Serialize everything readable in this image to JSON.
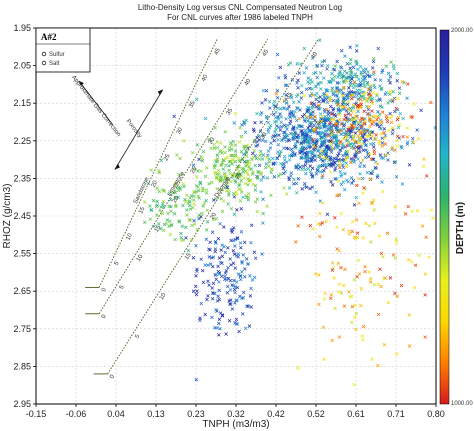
{
  "chart_data": {
    "type": "scatter",
    "title_lines": [
      "Litho-Density Log versus CNL Compensated Neutron Log",
      "For CNL curves after 1986 labeled TNPH"
    ],
    "xlabel": "TNPH (m3/m3)",
    "ylabel": "RHOZ (g/cm3)",
    "xlim": [
      -0.15,
      0.8
    ],
    "ylim": [
      1.95,
      2.95
    ],
    "y_reversed": true,
    "grid": true,
    "x_ticks": [
      "-0.15",
      "-0.06",
      "0.04",
      "0.13",
      "0.23",
      "0.32",
      "0.42",
      "0.52",
      "0.61",
      "0.71",
      "0.80"
    ],
    "x_tick_values": [
      -0.15,
      -0.055,
      0.04,
      0.135,
      0.23,
      0.325,
      0.42,
      0.515,
      0.61,
      0.705,
      0.8
    ],
    "y_ticks": [
      "1.95",
      "2.05",
      "2.15",
      "2.25",
      "2.35",
      "2.45",
      "2.55",
      "2.65",
      "2.75",
      "2.85",
      "2.95"
    ],
    "y_tick_values": [
      1.95,
      2.05,
      2.15,
      2.25,
      2.35,
      2.45,
      2.55,
      2.65,
      2.75,
      2.85,
      2.95
    ],
    "panel_label": "A#2",
    "legend": {
      "placement": "top-left",
      "items": [
        {
          "label": "Sulfur",
          "marker": "small-circle"
        },
        {
          "label": "Salt",
          "marker": "small-circle"
        }
      ]
    },
    "colorbar": {
      "label": "DEPTH (m)",
      "min_label": "1000.00",
      "max_label": "2000.00",
      "min": 1000,
      "max": 2000,
      "colors": [
        "#d7191c",
        "#ff7f00",
        "#ffd700",
        "#e6f01e",
        "#7fd03c",
        "#2db36b",
        "#22b5c9",
        "#1e7fd6",
        "#1e3cb4",
        "#2a1f9b"
      ]
    },
    "lithology_lines": [
      {
        "name": "Sandstone",
        "start": [
          0.0,
          2.64
        ],
        "end": [
          0.28,
          1.98
        ],
        "ticks": [
          "0",
          "5",
          "10",
          "15",
          "20",
          "25",
          "30",
          "35",
          "40",
          "45"
        ],
        "label_at": 0.42
      },
      {
        "name": "Limestone",
        "start": [
          0.0,
          2.71
        ],
        "end": [
          0.4,
          1.98
        ],
        "ticks": [
          "0",
          "5",
          "10",
          "15",
          "20",
          "25",
          "30",
          "35",
          "40",
          "45"
        ],
        "label_at": 0.5
      },
      {
        "name": "Dolomite",
        "start": [
          0.02,
          2.87
        ],
        "end": [
          0.52,
          1.98
        ],
        "ticks": [
          "0",
          "5",
          "10",
          "15",
          "20",
          "25",
          "30",
          "35",
          "40"
        ],
        "label_at": 0.58
      }
    ],
    "annotations": [
      {
        "text": "Approximate Gas Correction",
        "x": -0.01,
        "y": 2.16
      },
      {
        "text": "Porosity",
        "x": 0.08,
        "y": 2.22
      }
    ],
    "clusters": [
      {
        "name": "main",
        "cx": 0.52,
        "cy": 2.24,
        "sx": 0.085,
        "sy": 0.065,
        "n": 900,
        "depth_range": [
          1600,
          2000
        ],
        "marker": "x"
      },
      {
        "name": "upper-band",
        "cx": 0.6,
        "cy": 2.1,
        "sx": 0.06,
        "sy": 0.04,
        "n": 220,
        "depth_range": [
          1500,
          1900
        ],
        "marker": "x"
      },
      {
        "name": "deep-east",
        "cx": 0.62,
        "cy": 2.2,
        "sx": 0.06,
        "sy": 0.05,
        "n": 200,
        "depth_range": [
          1000,
          1350
        ],
        "marker": "x"
      },
      {
        "name": "mid-left",
        "cx": 0.32,
        "cy": 2.33,
        "sx": 0.05,
        "sy": 0.045,
        "n": 220,
        "depth_range": [
          1350,
          1550
        ],
        "marker": "x"
      },
      {
        "name": "low-left",
        "cx": 0.19,
        "cy": 2.42,
        "sx": 0.05,
        "sy": 0.05,
        "n": 120,
        "depth_range": [
          1400,
          1600
        ],
        "marker": "x"
      },
      {
        "name": "bottom-column",
        "cx": 0.3,
        "cy": 2.6,
        "sx": 0.035,
        "sy": 0.08,
        "n": 180,
        "depth_range": [
          1750,
          2000
        ],
        "marker": "x"
      },
      {
        "name": "scatter-south",
        "cx": 0.62,
        "cy": 2.55,
        "sx": 0.08,
        "sy": 0.16,
        "n": 160,
        "depth_range": [
          1000,
          1400
        ],
        "marker": "x"
      }
    ]
  }
}
